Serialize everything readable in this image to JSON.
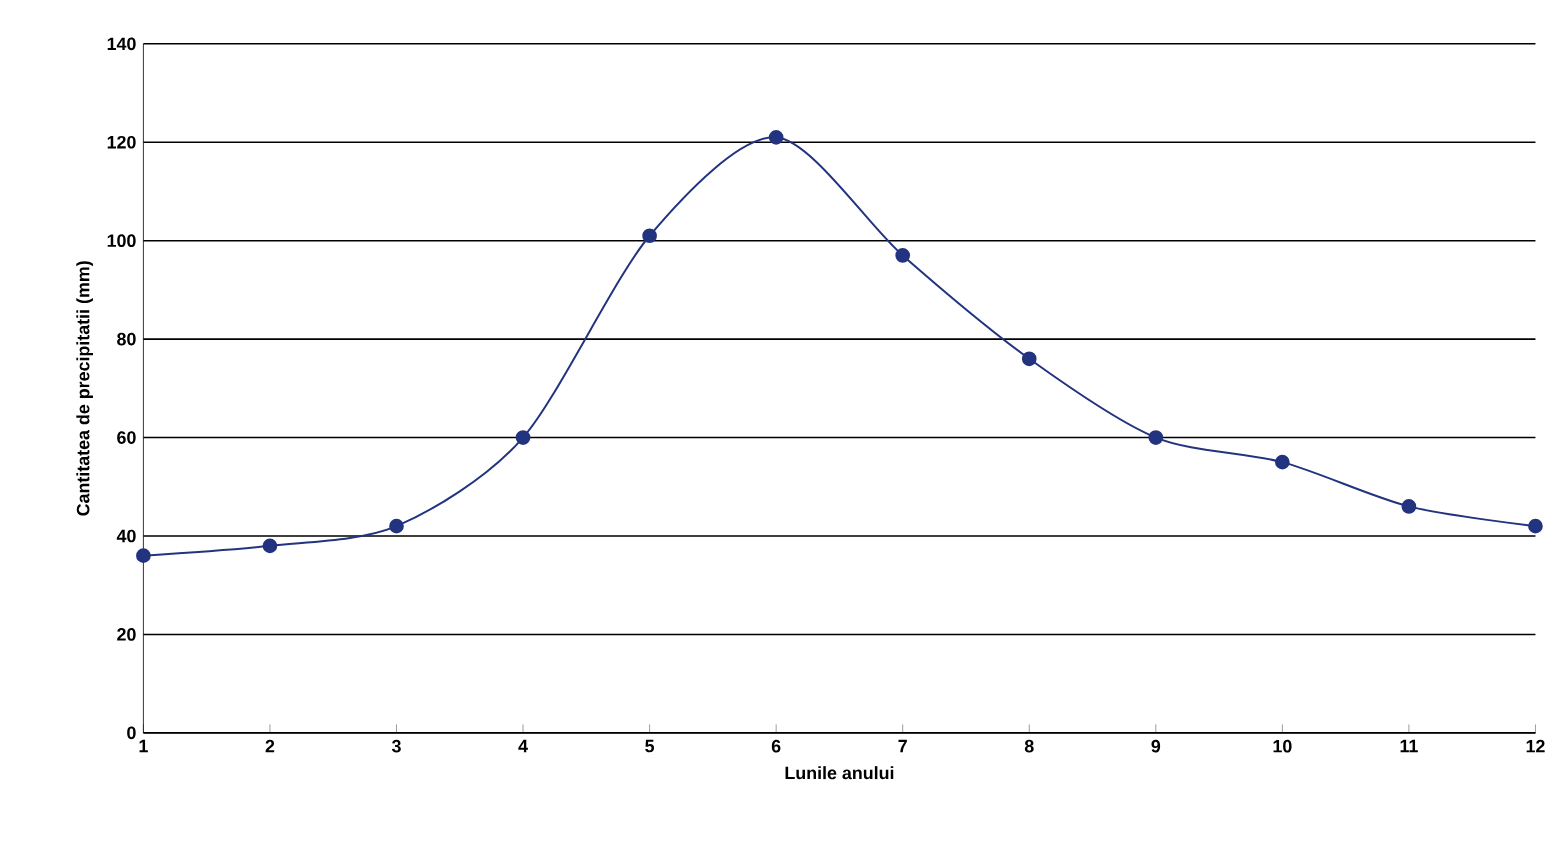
{
  "chart_data": {
    "type": "line",
    "xlabel": "Lunile anului",
    "ylabel": "Cantitatea de precipitatii (mm)",
    "x": [
      1,
      2,
      3,
      4,
      5,
      6,
      7,
      8,
      9,
      10,
      11,
      12
    ],
    "series": [
      {
        "color": "#22337f",
        "values": [
          36,
          38,
          42,
          60,
          101,
          121,
          97,
          76,
          60,
          55,
          46,
          42
        ]
      }
    ],
    "xlim": [
      1,
      12
    ],
    "ylim": [
      0,
      140
    ],
    "xticks": [
      1,
      2,
      3,
      4,
      5,
      6,
      7,
      8,
      9,
      10,
      11,
      12
    ],
    "yticks": [
      0,
      20,
      40,
      60,
      80,
      100,
      120,
      140
    ],
    "grid": "y",
    "marker": "circle",
    "line_style": "solid"
  }
}
